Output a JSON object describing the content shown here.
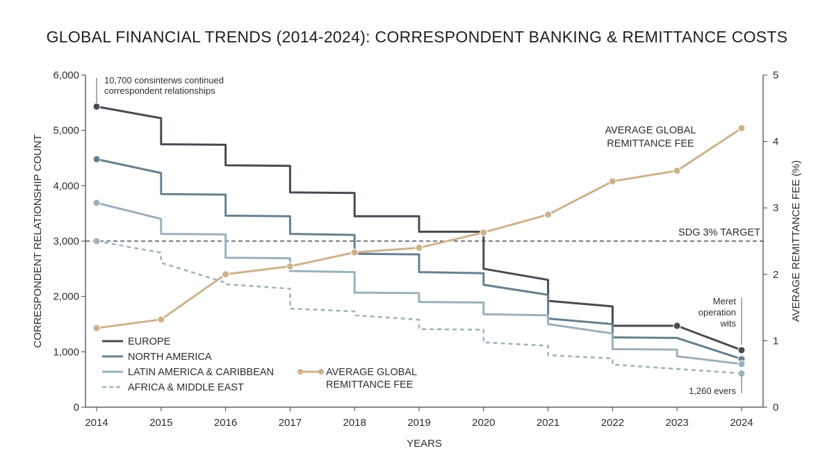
{
  "chart_data": {
    "type": "line",
    "title": "GLOBAL FINANCIAL TRENDS (2014-2024): CORRESPONDENT BANKING & REMITTANCE COSTS",
    "xlabel": "YEARS",
    "ylabel": "CORRESPONDENT RELATIONSHIP COUNT",
    "ylabel_right": "AVERAGE REMITTANCE FEE (%)",
    "x": [
      2014,
      2015,
      2016,
      2017,
      2018,
      2019,
      2020,
      2021,
      2022,
      2023,
      2024
    ],
    "x_tick_labels": [
      "2014",
      "2015",
      "2016",
      "2017",
      "2018",
      "2019",
      "2020",
      "2021",
      "2022",
      "2023",
      "2024"
    ],
    "ylim": [
      0,
      6000
    ],
    "y_tick_labels": [
      "0",
      "1,000",
      "2,000",
      "3,000",
      "4,000",
      "5,000",
      "6,000"
    ],
    "ylim_right": [
      0,
      5
    ],
    "y_right_tick_labels": [
      "0",
      "1",
      "2",
      "3",
      "4",
      "5"
    ],
    "grid": false,
    "legend_position": "bottom-left",
    "series": [
      {
        "name": "EUROPE",
        "axis": "left",
        "style": "step",
        "color": "#464b52",
        "points": [
          [
            2014,
            5430
          ],
          [
            2015,
            5220
          ],
          [
            2015,
            4750
          ],
          [
            2016,
            4740
          ],
          [
            2016,
            4370
          ],
          [
            2017,
            4360
          ],
          [
            2017,
            3880
          ],
          [
            2018,
            3870
          ],
          [
            2018,
            3450
          ],
          [
            2019,
            3450
          ],
          [
            2019,
            3170
          ],
          [
            2020,
            3170
          ],
          [
            2020,
            2500
          ],
          [
            2021,
            2300
          ],
          [
            2021,
            1920
          ],
          [
            2022,
            1820
          ],
          [
            2022,
            1470
          ],
          [
            2023,
            1470
          ],
          [
            2024,
            1030
          ]
        ],
        "markers": [
          [
            2014,
            5430
          ],
          [
            2023,
            1470
          ],
          [
            2024,
            1030
          ]
        ]
      },
      {
        "name": "NORTH AMERICA",
        "axis": "left",
        "style": "step",
        "color": "#677f8e",
        "points": [
          [
            2014,
            4480
          ],
          [
            2015,
            4230
          ],
          [
            2015,
            3850
          ],
          [
            2016,
            3840
          ],
          [
            2016,
            3460
          ],
          [
            2017,
            3450
          ],
          [
            2017,
            3130
          ],
          [
            2018,
            3110
          ],
          [
            2018,
            2770
          ],
          [
            2019,
            2760
          ],
          [
            2019,
            2440
          ],
          [
            2020,
            2420
          ],
          [
            2020,
            2210
          ],
          [
            2021,
            2030
          ],
          [
            2021,
            1600
          ],
          [
            2022,
            1500
          ],
          [
            2022,
            1260
          ],
          [
            2023,
            1250
          ],
          [
            2024,
            870
          ]
        ],
        "markers": [
          [
            2014,
            4480
          ],
          [
            2024,
            870
          ]
        ]
      },
      {
        "name": "LATIN AMERICA & CARIBBEAN",
        "axis": "left",
        "style": "step",
        "color": "#9ab0bd",
        "points": [
          [
            2014,
            3690
          ],
          [
            2015,
            3400
          ],
          [
            2015,
            3130
          ],
          [
            2016,
            3120
          ],
          [
            2016,
            2700
          ],
          [
            2017,
            2690
          ],
          [
            2017,
            2460
          ],
          [
            2018,
            2440
          ],
          [
            2018,
            2070
          ],
          [
            2019,
            2060
          ],
          [
            2019,
            1900
          ],
          [
            2020,
            1890
          ],
          [
            2020,
            1680
          ],
          [
            2021,
            1660
          ],
          [
            2021,
            1500
          ],
          [
            2022,
            1330
          ],
          [
            2022,
            1050
          ],
          [
            2023,
            1040
          ],
          [
            2023,
            920
          ],
          [
            2024,
            780
          ]
        ],
        "markers": [
          [
            2014,
            3690
          ],
          [
            2024,
            780
          ]
        ]
      },
      {
        "name": "AFRICA & MIDDLE EAST",
        "axis": "left",
        "style": "dashed-step",
        "color": "#9fb4c0",
        "points": [
          [
            2014,
            3000
          ],
          [
            2015,
            2790
          ],
          [
            2015,
            2610
          ],
          [
            2016,
            2250
          ],
          [
            2016,
            2220
          ],
          [
            2017,
            2140
          ],
          [
            2017,
            1780
          ],
          [
            2018,
            1730
          ],
          [
            2018,
            1660
          ],
          [
            2019,
            1580
          ],
          [
            2019,
            1410
          ],
          [
            2020,
            1400
          ],
          [
            2020,
            1170
          ],
          [
            2021,
            1110
          ],
          [
            2021,
            940
          ],
          [
            2022,
            880
          ],
          [
            2022,
            770
          ],
          [
            2023,
            690
          ],
          [
            2024,
            610
          ]
        ],
        "markers": [
          [
            2014,
            3000
          ],
          [
            2024,
            610
          ]
        ]
      },
      {
        "name": "AVERAGE GLOBAL REMITTANCE FEE",
        "axis": "right",
        "style": "line",
        "color": "#cdb28b",
        "points": [
          [
            2014,
            1.19
          ],
          [
            2015,
            1.32
          ],
          [
            2016,
            2.0
          ],
          [
            2017,
            2.12
          ],
          [
            2018,
            2.33
          ],
          [
            2019,
            2.4
          ],
          [
            2020,
            2.63
          ],
          [
            2021,
            2.9
          ],
          [
            2022,
            3.4
          ],
          [
            2023,
            3.56
          ],
          [
            2024,
            4.2
          ]
        ],
        "markers": [
          [
            2014,
            1.19
          ],
          [
            2015,
            1.32
          ],
          [
            2016,
            2.0
          ],
          [
            2017,
            2.12
          ],
          [
            2018,
            2.33
          ],
          [
            2019,
            2.4
          ],
          [
            2020,
            2.63
          ],
          [
            2021,
            2.9
          ],
          [
            2022,
            3.4
          ],
          [
            2023,
            3.56
          ],
          [
            2024,
            4.2
          ]
        ]
      }
    ],
    "reference_line": {
      "label": "SDG 3% TARGET",
      "value": 3000,
      "axis": "left"
    },
    "legend": [
      {
        "label": "EUROPE",
        "style": "solid",
        "color": "#464b52"
      },
      {
        "label": "NORTH AMERICA",
        "style": "solid",
        "color": "#677f8e"
      },
      {
        "label": "LATIN AMERICA & CARIBBEAN",
        "style": "solid",
        "color": "#9ab0bd"
      },
      {
        "label": "AFRICA & MIDDLE EAST",
        "style": "dashed",
        "color": "#9fb4c0"
      },
      {
        "label": "AVERAGE GLOBAL",
        "label2": "REMITTANCE FEE",
        "style": "marker",
        "color": "#cdb28b"
      }
    ],
    "annotations": {
      "top_left": [
        "10,700 consinterws continued",
        "correspondent relationships"
      ],
      "fee_series_label": [
        "AVERAGE GLOBAL",
        "REMITTANCE FEE"
      ],
      "right_note": [
        "Meret",
        "operation",
        "wits"
      ],
      "bottom_note": "1,260 evers"
    }
  }
}
